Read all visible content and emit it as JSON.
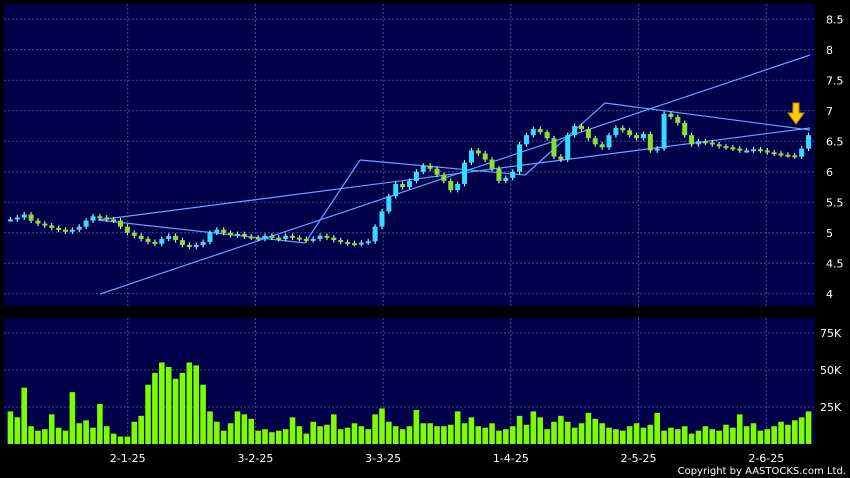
{
  "copyright": "Copyright by AASTOCKS.com Ltd.",
  "colors": {
    "background": "#000000",
    "panel": "#00004a",
    "grid": "#4a4a8c",
    "up_candle": "#33ddff",
    "down_candle": "#88e030",
    "volume": "#7cfc00",
    "trendline": "#5fa8ff",
    "marker": "#ffcc00",
    "text": "#ffffff"
  },
  "chart_data": [
    {
      "type": "candlestick",
      "title": "",
      "xlabel": "",
      "ylabel": "",
      "x_ticks": [
        "2-1-25",
        "3-2-25",
        "3-3-25",
        "1-4-25",
        "2-5-25",
        "2-6-25"
      ],
      "y_ticks": [
        "4",
        "4.5",
        "5",
        "5.5",
        "6",
        "6.5",
        "7",
        "7.5",
        "8",
        "8.5"
      ],
      "ylim": [
        3.8,
        8.75
      ],
      "closes": [
        5.22,
        5.25,
        5.3,
        5.2,
        5.15,
        5.12,
        5.08,
        5.05,
        5.02,
        5.05,
        5.1,
        5.2,
        5.27,
        5.25,
        5.22,
        5.2,
        5.1,
        5.0,
        4.95,
        4.9,
        4.85,
        4.82,
        4.9,
        4.95,
        4.88,
        4.8,
        4.77,
        4.8,
        4.85,
        5.0,
        5.05,
        5.0,
        4.96,
        4.98,
        4.94,
        4.92,
        4.9,
        4.95,
        4.92,
        4.9,
        4.95,
        4.92,
        4.9,
        4.88,
        4.9,
        4.95,
        4.92,
        4.88,
        4.85,
        4.83,
        4.82,
        4.84,
        4.86,
        5.1,
        5.35,
        5.6,
        5.8,
        5.75,
        5.85,
        6.0,
        6.1,
        6.05,
        5.95,
        5.85,
        5.7,
        5.8,
        6.15,
        6.35,
        6.3,
        6.2,
        6.05,
        5.85,
        5.9,
        6.0,
        6.45,
        6.6,
        6.7,
        6.65,
        6.55,
        6.25,
        6.2,
        6.6,
        6.75,
        6.7,
        6.55,
        6.45,
        6.4,
        6.6,
        6.72,
        6.68,
        6.6,
        6.55,
        6.62,
        6.35,
        6.38,
        6.95,
        6.9,
        6.8,
        6.6,
        6.45,
        6.5,
        6.48,
        6.45,
        6.42,
        6.4,
        6.38,
        6.35,
        6.35,
        6.37,
        6.35,
        6.32,
        6.3,
        6.28,
        6.27,
        6.25,
        6.38,
        6.6
      ],
      "volumes": [
        22000,
        18000,
        38000,
        12000,
        9000,
        10000,
        20000,
        11000,
        9000,
        35000,
        14000,
        16000,
        11000,
        27000,
        12000,
        7000,
        5000,
        5000,
        15000,
        19000,
        40000,
        48000,
        55000,
        52000,
        44000,
        48000,
        55000,
        53000,
        40000,
        22000,
        15000,
        9000,
        14000,
        22000,
        20000,
        17000,
        9000,
        10000,
        8000,
        9000,
        10000,
        18000,
        12000,
        7000,
        15000,
        12000,
        13000,
        20000,
        10000,
        11000,
        14000,
        12000,
        10000,
        20000,
        24000,
        15000,
        12000,
        10000,
        12000,
        23000,
        14000,
        14000,
        12000,
        12000,
        13000,
        22000,
        14000,
        18000,
        12000,
        11000,
        14000,
        9000,
        10000,
        12000,
        19000,
        13000,
        22000,
        18000,
        10000,
        15000,
        19000,
        15000,
        11000,
        14000,
        21000,
        17000,
        14000,
        11000,
        10000,
        9000,
        12000,
        14000,
        11000,
        13000,
        21000,
        9000,
        11000,
        10000,
        12000,
        7000,
        9000,
        12000,
        10000,
        9000,
        13000,
        11000,
        20000,
        12000,
        14000,
        9000,
        10000,
        12000,
        15000,
        13000,
        16000,
        18000,
        22000
      ],
      "annotations": [
        {
          "type": "trend",
          "points": [
            [
              0.12,
              5.05
            ],
            [
              0.93,
              6.28
            ]
          ],
          "label": ""
        }
      ]
    },
    {
      "type": "bar",
      "title": "",
      "series": [
        {
          "values_ref": "volumes"
        }
      ],
      "y_ticks": [
        "25K",
        "50K",
        "75K"
      ],
      "ylim": [
        0,
        85000
      ]
    }
  ]
}
